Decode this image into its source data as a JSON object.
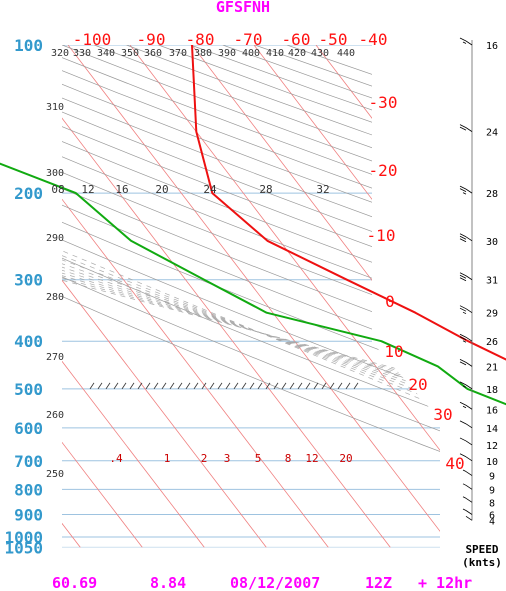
{
  "chart_data": {
    "type": "skew-t log-p sounding",
    "title": "GFSFNH",
    "footer": {
      "lat": "60.69",
      "lon": "8.84",
      "date": "08/12/2007",
      "cycle": "12Z",
      "forecast": "+ 12hr"
    },
    "pressure_labels": [
      "100",
      "200",
      "300",
      "400",
      "500",
      "600",
      "700",
      "800",
      "900",
      "1000",
      "1050"
    ],
    "pressure_levels": [
      100,
      200,
      300,
      400,
      500,
      600,
      700,
      800,
      900,
      1000,
      1050
    ],
    "temperature_ticks_top": [
      "-100",
      "-90",
      "-80",
      "-70",
      "-60",
      "-50",
      "-40"
    ],
    "temperature_values_top": [
      -100,
      -90,
      -80,
      -70,
      -60,
      -50,
      -40
    ],
    "temperature_ticks_skewed": [
      "-30",
      "-20",
      "-10",
      "0",
      "10",
      "20",
      "30",
      "40"
    ],
    "temperature_values_skewed": [
      -30,
      -20,
      -10,
      0,
      10,
      20,
      30,
      40
    ],
    "theta_labels_top": [
      "320",
      "330",
      "340",
      "350",
      "360",
      "370",
      "380",
      "390",
      "400",
      "410",
      "420",
      "430",
      "440"
    ],
    "theta_labels_left": [
      "310",
      "300",
      "290",
      "280",
      "270",
      "260",
      "250"
    ],
    "mixing_ratio_labels_upper": [
      "08",
      "12",
      "16",
      "20",
      "24",
      "28",
      "32"
    ],
    "mixing_ratio_labels_lower": [
      ".4",
      "1",
      "2",
      "3",
      "5",
      "8",
      "12",
      "20"
    ],
    "series": [
      {
        "name": "Temperature",
        "color": "#ee1111",
        "points": [
          {
            "p": 100,
            "t": -40
          },
          {
            "p": 150,
            "t": -50
          },
          {
            "p": 200,
            "t": -55
          },
          {
            "p": 250,
            "t": -52
          },
          {
            "p": 300,
            "t": -44
          },
          {
            "p": 350,
            "t": -37
          },
          {
            "p": 400,
            "t": -32
          },
          {
            "p": 500,
            "t": -22
          },
          {
            "p": 600,
            "t": -14
          },
          {
            "p": 700,
            "t": -7
          },
          {
            "p": 800,
            "t": -1
          },
          {
            "p": 850,
            "t": 1
          },
          {
            "p": 900,
            "t": 5
          }
        ]
      },
      {
        "name": "Dewpoint",
        "color": "#11aa11",
        "points": [
          {
            "p": 150,
            "t": -95
          },
          {
            "p": 200,
            "t": -77
          },
          {
            "p": 250,
            "t": -74
          },
          {
            "p": 300,
            "t": -67
          },
          {
            "p": 350,
            "t": -61
          },
          {
            "p": 400,
            "t": -46
          },
          {
            "p": 450,
            "t": -40
          },
          {
            "p": 500,
            "t": -38
          },
          {
            "p": 600,
            "t": -27
          },
          {
            "p": 700,
            "t": -15
          },
          {
            "p": 800,
            "t": -4
          },
          {
            "p": 900,
            "t": 2
          }
        ]
      }
    ],
    "wind_speed_title": [
      "SPEED",
      "(knts)"
    ],
    "wind_speed_labels": [
      "16",
      "24",
      "28",
      "30",
      "31",
      "29",
      "26",
      "21",
      "18",
      "16",
      "14",
      "12",
      "10",
      "9",
      "9",
      "8",
      "6",
      "4"
    ],
    "wind_speed_values": [
      16,
      24,
      28,
      30,
      31,
      29,
      26,
      21,
      18,
      16,
      14,
      12,
      10,
      9,
      9,
      8,
      6,
      4
    ],
    "wind_levels": [
      100,
      150,
      200,
      250,
      300,
      350,
      400,
      450,
      500,
      550,
      600,
      650,
      700,
      750,
      800,
      850,
      900,
      925
    ],
    "colors": {
      "pressure_axis": "#3399cc",
      "isotherm": "#ee1111",
      "temperature_trace": "#ee1111",
      "dewpoint_trace": "#11aa11",
      "title": "#ff00ff",
      "grid": "#9ec3e0"
    }
  }
}
